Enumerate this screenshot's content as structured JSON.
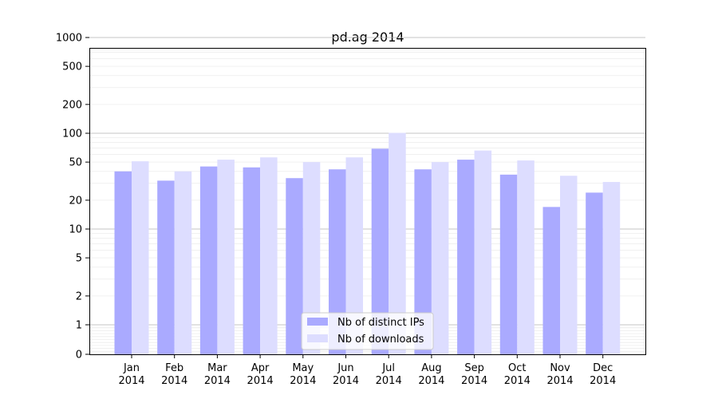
{
  "chart_data": {
    "type": "bar",
    "title": "pd.ag 2014",
    "xlabel": "",
    "ylabel": "",
    "y_scale": "symlog",
    "ylim": [
      0,
      1300
    ],
    "y_ticks": [
      0,
      1,
      2,
      5,
      10,
      20,
      50,
      100,
      200,
      500,
      1000
    ],
    "grid": "horizontal (major and minor)",
    "legend_position": "lower-center",
    "categories": [
      [
        "Jan",
        "2014"
      ],
      [
        "Feb",
        "2014"
      ],
      [
        "Mar",
        "2014"
      ],
      [
        "Apr",
        "2014"
      ],
      [
        "May",
        "2014"
      ],
      [
        "Jun",
        "2014"
      ],
      [
        "Jul",
        "2014"
      ],
      [
        "Aug",
        "2014"
      ],
      [
        "Sep",
        "2014"
      ],
      [
        "Oct",
        "2014"
      ],
      [
        "Nov",
        "2014"
      ],
      [
        "Dec",
        "2014"
      ]
    ],
    "series": [
      {
        "name": "Nb of distinct IPs",
        "color": "#aaaaff",
        "values": [
          40,
          32,
          45,
          44,
          34,
          42,
          69,
          42,
          53,
          37,
          17,
          24
        ]
      },
      {
        "name": "Nb of downloads",
        "color": "#ddddff",
        "values": [
          51,
          40,
          53,
          56,
          50,
          56,
          101,
          50,
          66,
          52,
          36,
          31
        ]
      }
    ]
  }
}
